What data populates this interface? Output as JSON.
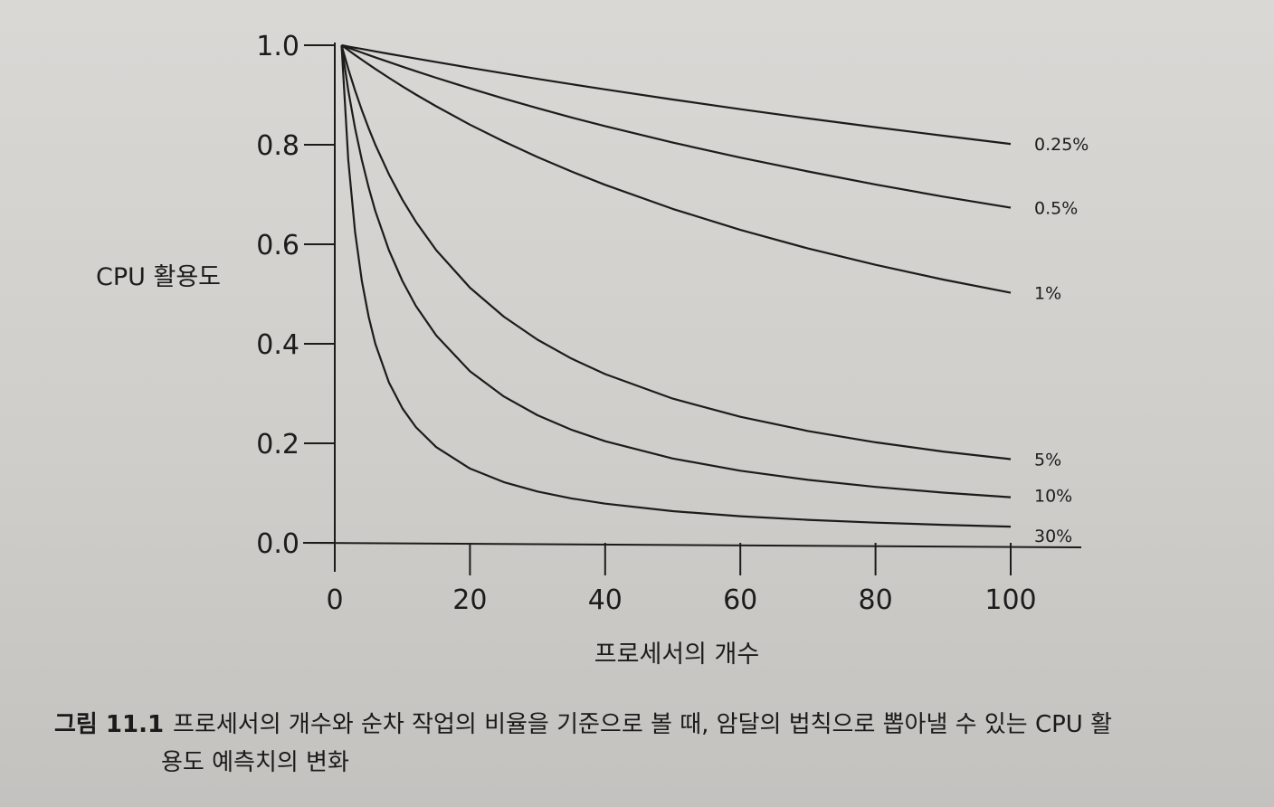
{
  "chart_data": {
    "type": "line",
    "xlabel": "프로세서의 개수",
    "ylabel": "CPU 활용도",
    "xlim": [
      0,
      100
    ],
    "ylim": [
      0,
      1
    ],
    "x_ticks": [
      "0",
      "20",
      "40",
      "60",
      "80",
      "100"
    ],
    "y_ticks": [
      "0.0",
      "0.2",
      "0.4",
      "0.6",
      "0.8",
      "1.0"
    ],
    "grid": false,
    "x": [
      1,
      2,
      3,
      4,
      5,
      6,
      8,
      10,
      12,
      15,
      20,
      25,
      30,
      35,
      40,
      50,
      60,
      70,
      80,
      90,
      100
    ],
    "series": [
      {
        "name": "0.25%",
        "values": [
          1.0,
          0.9975,
          0.995,
          0.9926,
          0.9901,
          0.9877,
          0.9828,
          0.978,
          0.9732,
          0.9662,
          0.9547,
          0.9434,
          0.9324,
          0.9217,
          0.9112,
          0.8909,
          0.8715,
          0.853,
          0.8352,
          0.8181,
          0.8017
        ]
      },
      {
        "name": "0.5%",
        "values": [
          1.0,
          0.995,
          0.9901,
          0.9852,
          0.9804,
          0.9756,
          0.9662,
          0.9569,
          0.9479,
          0.9346,
          0.9132,
          0.8929,
          0.8734,
          0.855,
          0.8374,
          0.8043,
          0.7742,
          0.7463,
          0.7202,
          0.6958,
          0.6734
        ]
      },
      {
        "name": "1%",
        "values": [
          1.0,
          0.9901,
          0.9804,
          0.9709,
          0.9615,
          0.9524,
          0.9346,
          0.9174,
          0.9009,
          0.8772,
          0.8403,
          0.8065,
          0.7752,
          0.7463,
          0.7194,
          0.6711,
          0.6289,
          0.5917,
          0.5587,
          0.5291,
          0.5025
        ]
      },
      {
        "name": "5%",
        "values": [
          1.0,
          0.9524,
          0.9091,
          0.8696,
          0.8333,
          0.8,
          0.7407,
          0.6897,
          0.6452,
          0.5882,
          0.5128,
          0.4545,
          0.4082,
          0.3704,
          0.339,
          0.2899,
          0.2532,
          0.2247,
          0.202,
          0.1835,
          0.1681
        ]
      },
      {
        "name": "10%",
        "values": [
          1.0,
          0.9091,
          0.8333,
          0.7692,
          0.7143,
          0.6667,
          0.5882,
          0.5263,
          0.4762,
          0.4167,
          0.3448,
          0.2941,
          0.2564,
          0.2273,
          0.2041,
          0.1695,
          0.1449,
          0.1266,
          0.1124,
          0.101,
          0.0917
        ]
      },
      {
        "name": "30%",
        "values": [
          1.0,
          0.7692,
          0.625,
          0.5263,
          0.4545,
          0.4,
          0.3226,
          0.2703,
          0.2326,
          0.1923,
          0.1493,
          0.122,
          0.1031,
          0.0893,
          0.0787,
          0.0637,
          0.0535,
          0.0461,
          0.0405,
          0.0361,
          0.0326
        ]
      }
    ]
  },
  "caption": {
    "label": "그림 11.1",
    "line1": "프로세서의 개수와 순차 작업의 비율을 기준으로 볼 때, 암달의 법칙으로 뽑아낼 수 있는 CPU 활",
    "line2": "용도 예측치의 변화"
  },
  "colors": {
    "ink": "#1c1c1c",
    "paper": "#d3d1ce"
  }
}
